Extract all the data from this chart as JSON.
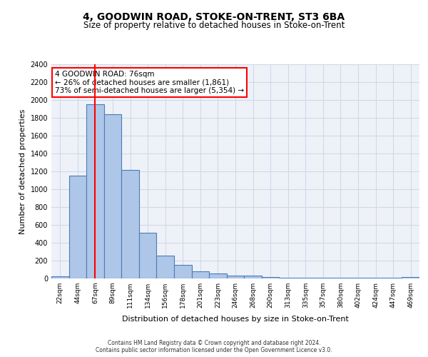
{
  "title": "4, GOODWIN ROAD, STOKE-ON-TRENT, ST3 6BA",
  "subtitle": "Size of property relative to detached houses in Stoke-on-Trent",
  "xlabel": "Distribution of detached houses by size in Stoke-on-Trent",
  "ylabel": "Number of detached properties",
  "categories": [
    "22sqm",
    "44sqm",
    "67sqm",
    "89sqm",
    "111sqm",
    "134sqm",
    "156sqm",
    "178sqm",
    "201sqm",
    "223sqm",
    "246sqm",
    "268sqm",
    "290sqm",
    "313sqm",
    "335sqm",
    "357sqm",
    "380sqm",
    "402sqm",
    "424sqm",
    "447sqm",
    "469sqm"
  ],
  "values": [
    25,
    1155,
    1955,
    1840,
    1220,
    510,
    260,
    155,
    80,
    55,
    35,
    35,
    20,
    10,
    10,
    10,
    5,
    5,
    5,
    5,
    20
  ],
  "bar_color": "#aec6e8",
  "bar_edge_color": "#4a7db5",
  "property_size": 76,
  "property_line_x": 2,
  "annotation_title": "4 GOODWIN ROAD: 76sqm",
  "annotation_line1": "← 26% of detached houses are smaller (1,861)",
  "annotation_line2": "73% of semi-detached houses are larger (5,354) →",
  "annotation_box_color": "red",
  "footer_line1": "Contains HM Land Registry data © Crown copyright and database right 2024.",
  "footer_line2": "Contains public sector information licensed under the Open Government Licence v3.0.",
  "ylim": [
    0,
    2400
  ],
  "yticks": [
    0,
    200,
    400,
    600,
    800,
    1000,
    1200,
    1400,
    1600,
    1800,
    2000,
    2200,
    2400
  ],
  "grid_color": "#d0d8e8",
  "background_color": "#eef2f8"
}
